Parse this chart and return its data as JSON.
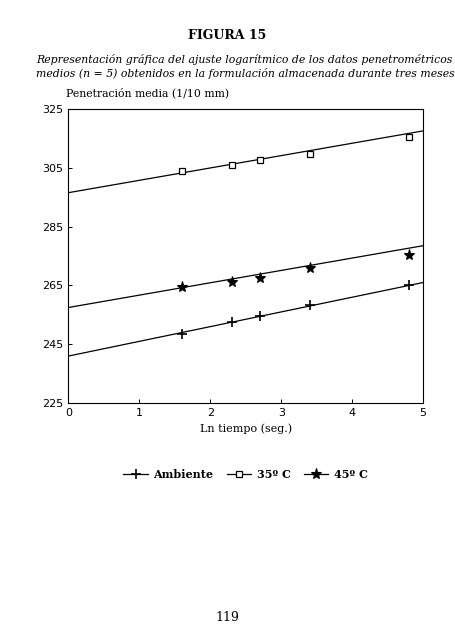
{
  "title": "FIGURA 15",
  "description_line1": "Representación gráfica del ajuste logarítmico de los datos penetrométricos",
  "description_line2": "medios (n = 5) obtenidos en la formulación almacenada durante tres meses.",
  "ylabel": "Penetración media (1/10 mm)",
  "xlabel": "Ln tiempo (seg.)",
  "xlim": [
    0,
    5
  ],
  "ylim": [
    225,
    325
  ],
  "yticks": [
    225,
    245,
    265,
    285,
    305,
    325
  ],
  "xticks": [
    0,
    1,
    2,
    3,
    4,
    5
  ],
  "page_number": "119",
  "series": [
    {
      "label": "Ambiente",
      "marker": "+",
      "intercept": 241.0,
      "slope": 5.0,
      "data_x": [
        1.6,
        2.3,
        2.7,
        3.4,
        4.8
      ],
      "data_y": [
        248.5,
        252.5,
        254.5,
        258.5,
        265.0
      ]
    },
    {
      "label": "35º C",
      "marker": "s",
      "intercept": 296.5,
      "slope": 4.2,
      "data_x": [
        1.6,
        2.3,
        2.7,
        3.4,
        4.8
      ],
      "data_y": [
        304.0,
        306.0,
        307.5,
        309.5,
        315.5
      ]
    },
    {
      "label": "45º C",
      "marker": "*",
      "intercept": 257.5,
      "slope": 4.2,
      "data_x": [
        1.6,
        2.3,
        2.7,
        3.4,
        4.8
      ],
      "data_y": [
        264.5,
        266.0,
        267.5,
        271.0,
        275.5
      ]
    }
  ]
}
